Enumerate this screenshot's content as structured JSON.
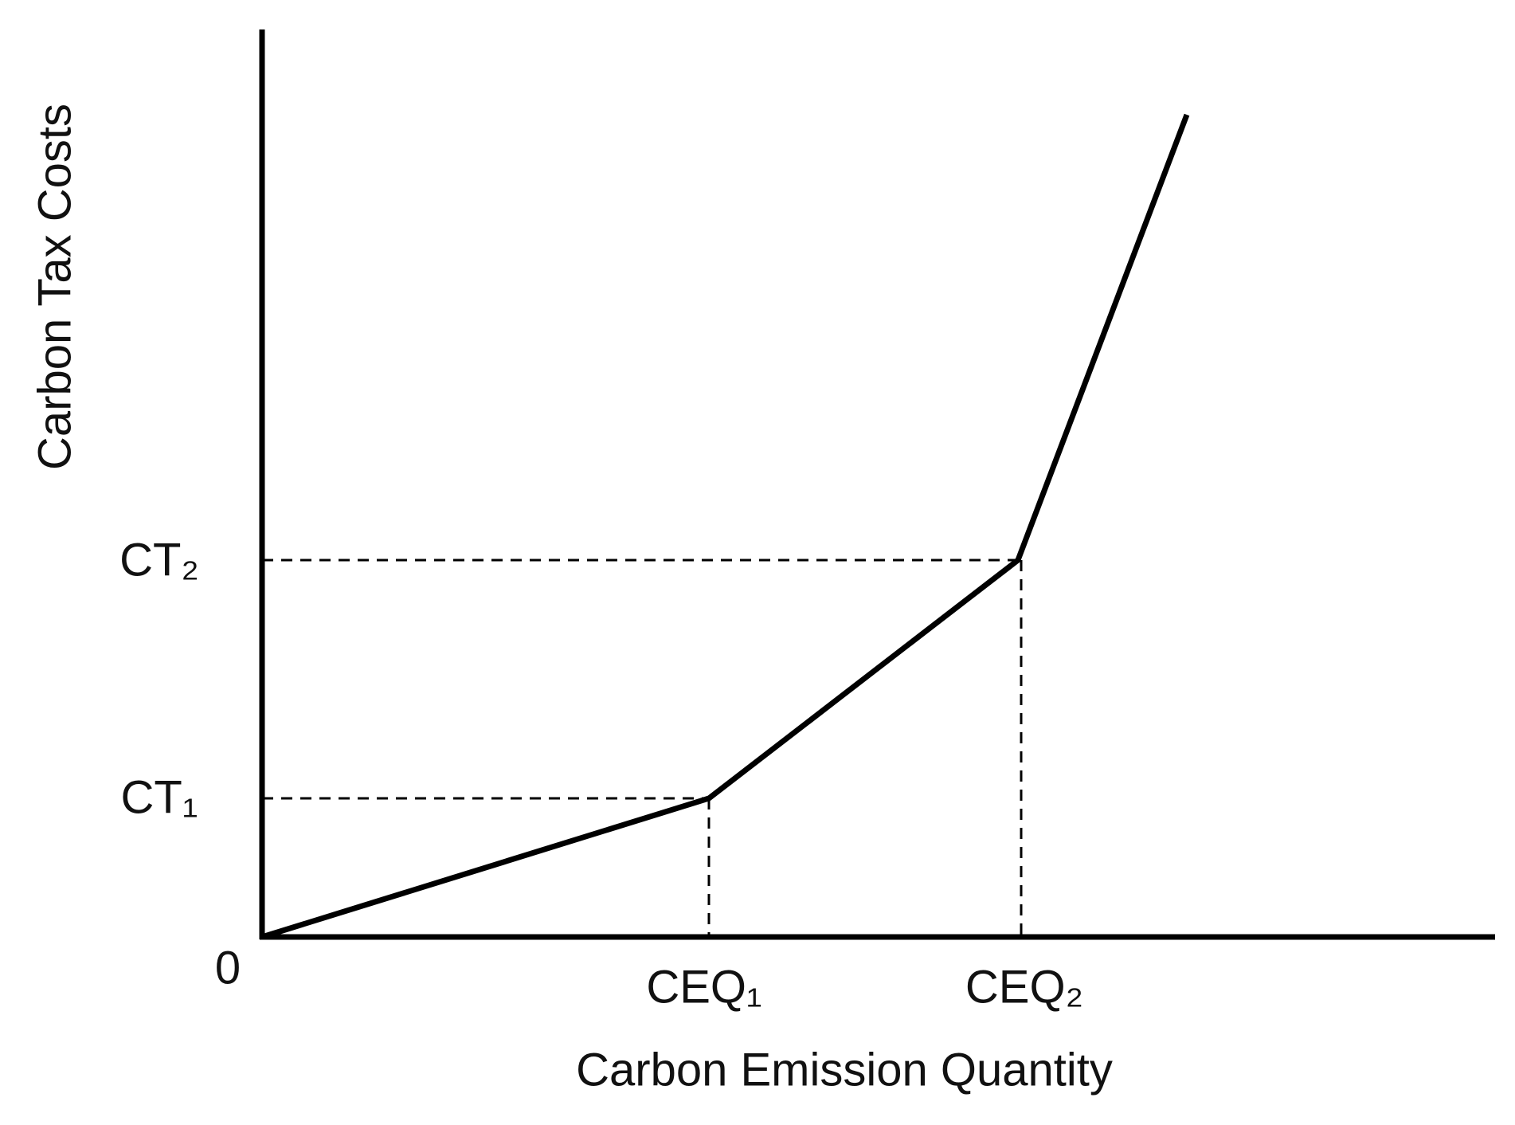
{
  "y_axis_label": "Carbon Tax Costs",
  "x_axis_label": "Carbon  Emission Quantity",
  "origin_label": "0",
  "y_labels": [
    "CT₁",
    "CT₂"
  ],
  "x_labels": [
    "CEQ₁",
    "CEQ₂"
  ]
}
